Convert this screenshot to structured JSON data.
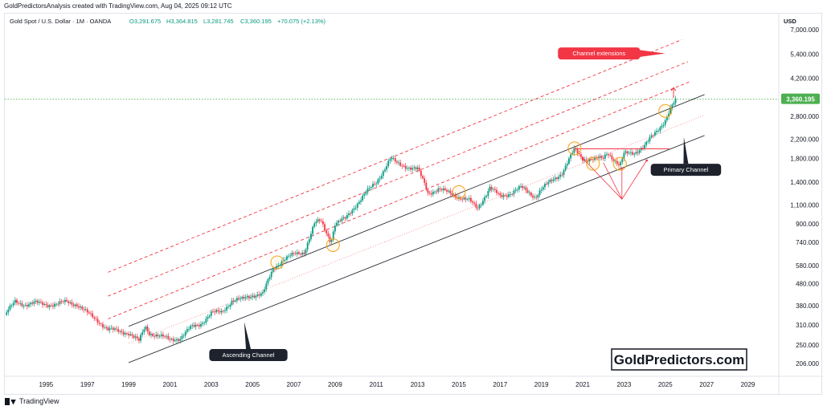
{
  "header": {
    "title": "GoldPredictorsAnalysis created with TradingView.com, Aug 04, 2025 09:12 UTC"
  },
  "chart_info": {
    "symbol": "Gold Spot / U.S. Dollar · 1M · OANDA",
    "open": "O3,291.675",
    "high": "H3,364.815",
    "low": "L3,281.745",
    "close": "C3,360.195",
    "change": "+70.075 (+2.13%)"
  },
  "footer": {
    "brand": "TradingView"
  },
  "colors": {
    "up": "#089981",
    "down": "#f23645",
    "channel_line": "#131722",
    "extension_line": "#f23645",
    "price_label": "#4caf50",
    "marker": "#f7a21b"
  },
  "chart_data": {
    "type": "candlestick",
    "currency": "USD",
    "y_scale": "log",
    "ylim": [
      180,
      8300
    ],
    "xlim": [
      1993.0,
      2030.5
    ],
    "y_ticks": [
      7000,
      5400,
      4200,
      2800,
      2200,
      1800,
      1400,
      1100,
      900,
      740,
      580,
      480,
      380,
      310,
      250,
      206
    ],
    "y_tick_labels": [
      "7,000.000",
      "5,400.000",
      "4,200.000",
      "2,800.000",
      "2,200.000",
      "1,800.000",
      "1,400.000",
      "1,100.000",
      "900.000",
      "740.000",
      "580.000",
      "480.000",
      "380.000",
      "310.000",
      "250.000",
      "206.000"
    ],
    "x_ticks": [
      1995,
      1997,
      1999,
      2001,
      2003,
      2005,
      2007,
      2009,
      2011,
      2013,
      2015,
      2017,
      2019,
      2021,
      2023,
      2025,
      2027,
      2029
    ],
    "x_tick_labels": [
      "1995",
      "1997",
      "1999",
      "2001",
      "2003",
      "2005",
      "2007",
      "2009",
      "2011",
      "2013",
      "2015",
      "2017",
      "2019",
      "2021",
      "2023",
      "2025",
      "2027",
      "2029"
    ],
    "price_path": [
      [
        1993.0,
        345
      ],
      [
        1993.5,
        395
      ],
      [
        1994.0,
        385
      ],
      [
        1994.5,
        390
      ],
      [
        1995.0,
        385
      ],
      [
        1995.5,
        385
      ],
      [
        1996.0,
        395
      ],
      [
        1996.5,
        385
      ],
      [
        1997.0,
        350
      ],
      [
        1997.5,
        325
      ],
      [
        1998.0,
        295
      ],
      [
        1998.5,
        290
      ],
      [
        1999.0,
        285
      ],
      [
        1999.5,
        260
      ],
      [
        1999.8,
        305
      ],
      [
        2000.0,
        285
      ],
      [
        2000.5,
        275
      ],
      [
        2001.0,
        265
      ],
      [
        2001.5,
        270
      ],
      [
        2002.0,
        300
      ],
      [
        2002.5,
        315
      ],
      [
        2003.0,
        350
      ],
      [
        2003.5,
        355
      ],
      [
        2004.0,
        400
      ],
      [
        2004.5,
        405
      ],
      [
        2005.0,
        425
      ],
      [
        2005.5,
        430
      ],
      [
        2006.0,
        560
      ],
      [
        2006.5,
        620
      ],
      [
        2007.0,
        650
      ],
      [
        2007.5,
        670
      ],
      [
        2008.0,
        900
      ],
      [
        2008.3,
        930
      ],
      [
        2008.8,
        750
      ],
      [
        2009.0,
        900
      ],
      [
        2009.5,
        950
      ],
      [
        2010.0,
        1100
      ],
      [
        2010.5,
        1250
      ],
      [
        2011.0,
        1400
      ],
      [
        2011.7,
        1800
      ],
      [
        2012.0,
        1700
      ],
      [
        2012.5,
        1650
      ],
      [
        2013.0,
        1600
      ],
      [
        2013.3,
        1400
      ],
      [
        2013.5,
        1250
      ],
      [
        2014.0,
        1300
      ],
      [
        2014.5,
        1250
      ],
      [
        2015.0,
        1200
      ],
      [
        2015.5,
        1150
      ],
      [
        2015.9,
        1060
      ],
      [
        2016.5,
        1320
      ],
      [
        2017.0,
        1200
      ],
      [
        2017.5,
        1250
      ],
      [
        2018.0,
        1320
      ],
      [
        2018.7,
        1200
      ],
      [
        2019.0,
        1300
      ],
      [
        2019.5,
        1420
      ],
      [
        2020.0,
        1550
      ],
      [
        2020.6,
        1970
      ],
      [
        2021.0,
        1800
      ],
      [
        2021.5,
        1780
      ],
      [
        2022.0,
        1800
      ],
      [
        2022.2,
        1930
      ],
      [
        2022.8,
        1650
      ],
      [
        2023.0,
        1880
      ],
      [
        2023.5,
        1920
      ],
      [
        2024.0,
        2050
      ],
      [
        2024.5,
        2350
      ],
      [
        2025.0,
        2700
      ],
      [
        2025.3,
        3100
      ],
      [
        2025.58,
        3360
      ]
    ],
    "last_price_label": "3,360.195",
    "last_price": 3360.195,
    "primary_channel": {
      "upper": [
        [
          1999.0,
          305
        ],
        [
          2026.9,
          3530
        ]
      ],
      "lower": [
        [
          1999.0,
          208
        ],
        [
          2026.9,
          2290
        ]
      ],
      "mid_dotted": [
        [
          1999.0,
          255
        ],
        [
          2026.9,
          2840
        ]
      ]
    },
    "extensions": [
      {
        "from": [
          1998.0,
          540
        ],
        "to": [
          2025.8,
          6300
        ]
      },
      {
        "from": [
          1998.0,
          420
        ],
        "to": [
          2026.1,
          5000
        ]
      },
      {
        "from": [
          1998.0,
          330
        ],
        "to": [
          2026.2,
          4050
        ]
      }
    ],
    "resistance_line": [
      [
        2020.6,
        1990
      ],
      [
        2025.2,
        1990
      ]
    ],
    "inverse_hs_lines": [
      [
        [
          2021.0,
          1800
        ],
        [
          2022.9,
          1170
        ],
        [
          2024.1,
          1760
        ]
      ],
      [
        [
          2022.0,
          1720
        ],
        [
          2022.9,
          1170
        ]
      ],
      [
        [
          2022.9,
          1170
        ],
        [
          2022.9,
          1620
        ]
      ]
    ],
    "breakout_arrow": [
      [
        2025.4,
        3400
      ],
      [
        2025.4,
        3800
      ]
    ],
    "circle_markers": [
      [
        2006.2,
        600
      ],
      [
        2008.9,
        720
      ],
      [
        2015.0,
        1260
      ],
      [
        2020.6,
        2000
      ],
      [
        2021.5,
        1700
      ],
      [
        2022.8,
        1700
      ],
      [
        2025.0,
        2970
      ]
    ],
    "annotations": [
      {
        "label": "Channel extensions",
        "style": "red",
        "pos": [
          2025.0,
          5450
        ]
      },
      {
        "label": "Primary Channel",
        "style": "dark",
        "pos": [
          2026.0,
          1870
        ]
      },
      {
        "label": "Ascending Channel",
        "style": "dark",
        "pos": [
          2004.8,
          250
        ]
      }
    ],
    "watermark": "GoldPredictors.com"
  }
}
